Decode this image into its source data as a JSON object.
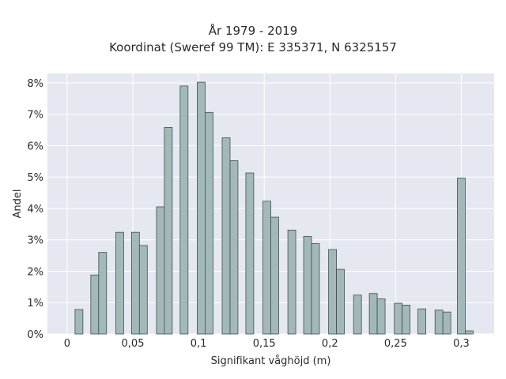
{
  "chart_data": {
    "type": "bar",
    "title": "År 1979 - 2019",
    "subtitle": "Koordinat (Sweref 99 TM): E 335371, N 6325157",
    "xlabel": "Signifikant våghöjd (m)",
    "ylabel": "Andel",
    "xlim": [
      -0.015,
      0.325
    ],
    "ylim": [
      0,
      8.3
    ],
    "x_ticks": [
      {
        "value": 0,
        "label": "0"
      },
      {
        "value": 0.05,
        "label": "0,05"
      },
      {
        "value": 0.1,
        "label": "0,1"
      },
      {
        "value": 0.15,
        "label": "0,15"
      },
      {
        "value": 0.2,
        "label": "0,2"
      },
      {
        "value": 0.25,
        "label": "0,25"
      },
      {
        "value": 0.3,
        "label": "0,3"
      }
    ],
    "y_ticks": [
      {
        "value": 0,
        "label": "0%"
      },
      {
        "value": 1,
        "label": "1%"
      },
      {
        "value": 2,
        "label": "2%"
      },
      {
        "value": 3,
        "label": "3%"
      },
      {
        "value": 4,
        "label": "4%"
      },
      {
        "value": 5,
        "label": "5%"
      },
      {
        "value": 6,
        "label": "6%"
      },
      {
        "value": 7,
        "label": "7%"
      },
      {
        "value": 8,
        "label": "8%"
      }
    ],
    "bar_width": 0.006,
    "x": [
      0.009,
      0.021,
      0.027,
      0.04,
      0.052,
      0.058,
      0.071,
      0.077,
      0.089,
      0.102,
      0.108,
      0.121,
      0.127,
      0.139,
      0.152,
      0.158,
      0.171,
      0.183,
      0.189,
      0.202,
      0.208,
      0.221,
      0.233,
      0.239,
      0.252,
      0.258,
      0.27,
      0.283,
      0.289,
      0.3,
      0.306
    ],
    "values": [
      0.78,
      1.88,
      2.6,
      3.24,
      3.24,
      2.82,
      4.05,
      6.58,
      7.9,
      8.02,
      7.06,
      6.25,
      5.52,
      5.13,
      4.23,
      3.72,
      3.31,
      3.11,
      2.88,
      2.69,
      2.06,
      1.24,
      1.29,
      1.12,
      0.98,
      0.92,
      0.8,
      0.76,
      0.7,
      4.97,
      0.1
    ],
    "colors": {
      "bar_fill": "#a3b9b9",
      "bar_stroke": "#3e4f4f",
      "plot_bg": "#e5e8f0",
      "grid": "#ffffff"
    },
    "grid": true
  }
}
